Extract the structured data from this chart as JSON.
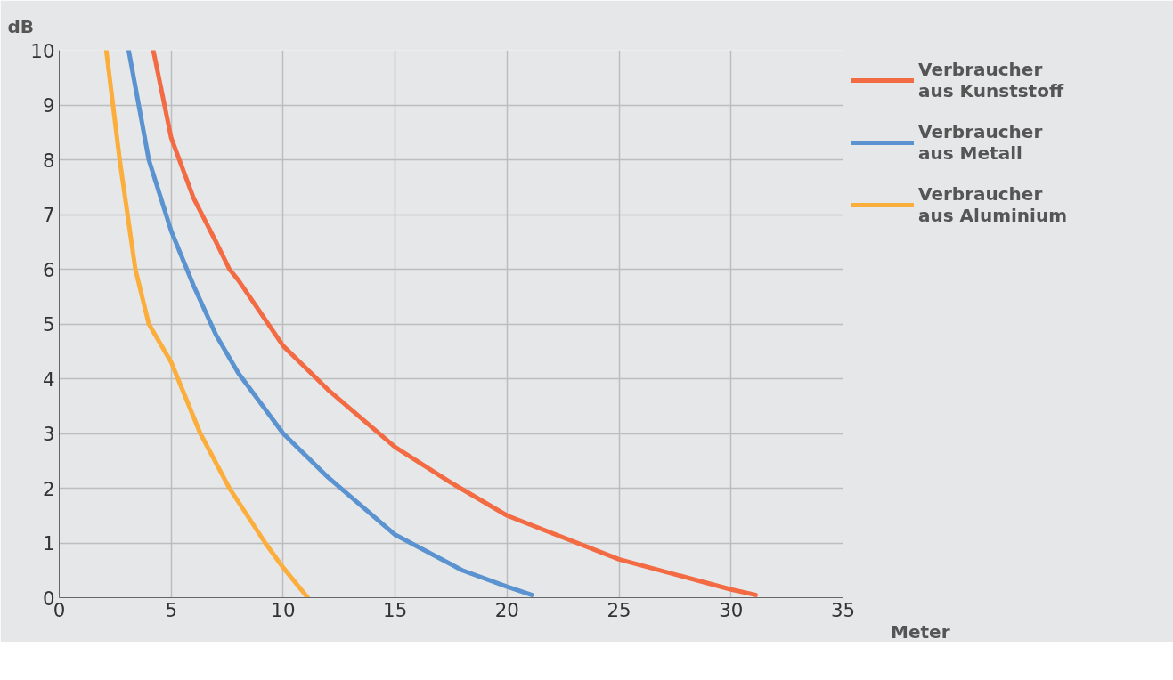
{
  "chart_data": {
    "type": "line",
    "xlabel": "Meter",
    "ylabel": "dB",
    "xlim": [
      0,
      35
    ],
    "ylim": [
      0,
      10
    ],
    "xticks": [
      0,
      5,
      10,
      15,
      20,
      25,
      30,
      35
    ],
    "yticks": [
      0,
      1,
      2,
      3,
      4,
      5,
      6,
      7,
      8,
      9,
      10
    ],
    "grid": true,
    "legend": "right",
    "marker": "none",
    "line_style": "solid",
    "series": [
      {
        "name": "Verbraucher aus Kunststoff",
        "color": "#f26b43",
        "x": [
          4.2,
          5,
          6,
          7,
          7.6,
          8,
          10,
          12,
          15,
          17.5,
          20,
          25,
          30,
          31.1
        ],
        "values": [
          10,
          8.4,
          7.3,
          6.5,
          6,
          5.8,
          4.6,
          3.8,
          2.75,
          2.1,
          1.5,
          0.7,
          0.15,
          0.05
        ]
      },
      {
        "name": "Verbraucher aus Metall",
        "color": "#5b93d0",
        "x": [
          3.1,
          4,
          5,
          6,
          7,
          8,
          10,
          12,
          15,
          18,
          20,
          21.1
        ],
        "values": [
          10,
          8,
          6.7,
          5.7,
          4.8,
          4.1,
          3,
          2.2,
          1.15,
          0.5,
          0.2,
          0.05
        ]
      },
      {
        "name": "Verbraucher aus Aluminium",
        "color": "#fbae3c",
        "x": [
          2.1,
          2.7,
          3.4,
          4,
          5,
          6.3,
          7.6,
          9.2,
          10,
          11.1
        ],
        "values": [
          10,
          8,
          6,
          5,
          4.3,
          3,
          2,
          1,
          0.55,
          0
        ]
      }
    ]
  }
}
